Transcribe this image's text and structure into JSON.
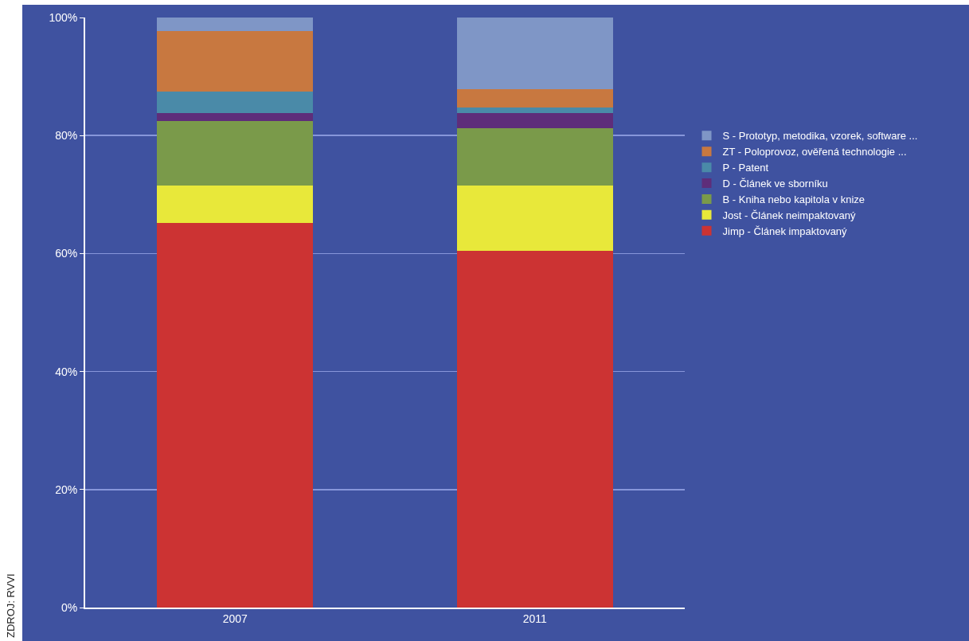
{
  "chart_data": {
    "type": "bar",
    "stacked": true,
    "categories": [
      "2007",
      "2011"
    ],
    "series": [
      {
        "name": "Jimp - Článek impaktovaný",
        "color": "#cc3333",
        "values": [
          65.2,
          60.5
        ]
      },
      {
        "name": "Jost - Článek neimpaktovaný",
        "color": "#e8e83a",
        "values": [
          6.3,
          11
        ]
      },
      {
        "name": "B - Kniha nebo kapitola v knize",
        "color": "#7a9a4a",
        "values": [
          11,
          9.8
        ]
      },
      {
        "name": "D - Článek ve sborníku",
        "color": "#5e2d7a",
        "values": [
          1.3,
          2.5
        ]
      },
      {
        "name": "P - Patent",
        "color": "#4a8aa8",
        "values": [
          3.6,
          0.9
        ]
      },
      {
        "name": "ZT - Poloprovoz, ověřená technologie ...",
        "color": "#c87840",
        "values": [
          10.3,
          3.2
        ]
      },
      {
        "name": "S - Prototyp, metodika, vzorek, software ...",
        "color": "#7f96c6",
        "values": [
          2.3,
          12.1
        ]
      }
    ],
    "ylim": [
      0,
      100
    ],
    "yticks": [
      {
        "value": 0,
        "label": "0%"
      },
      {
        "value": 20,
        "label": "20%"
      },
      {
        "value": 40,
        "label": "40%"
      },
      {
        "value": 60,
        "label": "60%"
      },
      {
        "value": 80,
        "label": "80%"
      },
      {
        "value": 100,
        "label": "100%"
      }
    ],
    "grid": "y",
    "legend": "right",
    "annotations": [
      "ZDROJ: RVVI"
    ]
  }
}
